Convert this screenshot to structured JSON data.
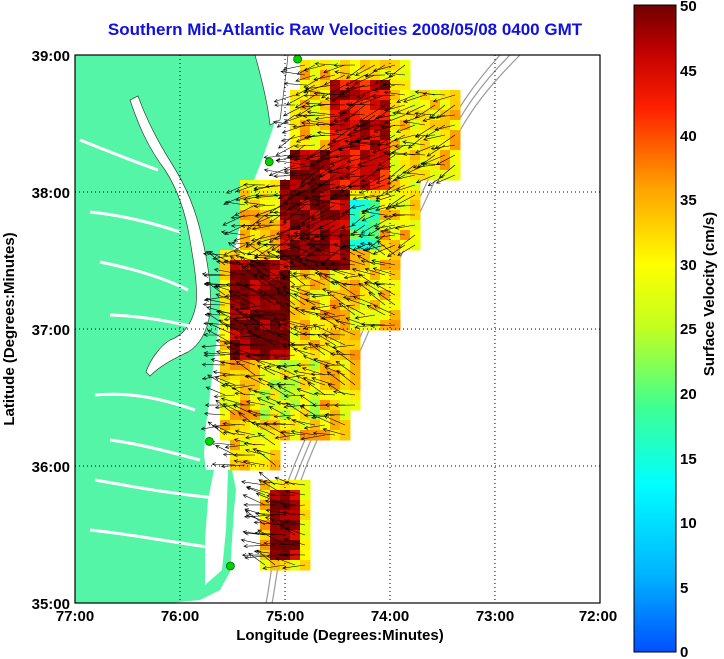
{
  "title": "Southern Mid-Atlantic Raw Velocities 2008/05/08 0400 GMT",
  "axes": {
    "xlabel": "Longitude (Degrees:Minutes)",
    "ylabel": "Latitude (Degrees:Minutes)",
    "x_ticks": [
      "77:00",
      "76:00",
      "75:00",
      "74:00",
      "73:00",
      "72:00"
    ],
    "y_ticks": [
      "39:00",
      "38:00",
      "37:00",
      "36:00",
      "35:00"
    ]
  },
  "colorbar": {
    "label": "Surface Velocity (cm/s)",
    "ticks": [
      "50",
      "45",
      "40",
      "35",
      "30",
      "25",
      "20",
      "15",
      "10",
      "5",
      "0"
    ],
    "min": 0,
    "max": 50
  },
  "colors": {
    "land": "#55f5a8",
    "title": "#1010e0",
    "station": "#00d200",
    "bathymetry": "#9a9a9a"
  },
  "chart_data": {
    "type": "heatmap",
    "title": "Southern Mid-Atlantic Raw Velocities 2008/05/08 0400 GMT",
    "xlabel": "Longitude (Degrees:Minutes)",
    "ylabel": "Latitude (Degrees:Minutes)",
    "xlim": [
      -77,
      -72
    ],
    "ylim": [
      35,
      39
    ],
    "grid": true,
    "colorbar": {
      "label": "Surface Velocity (cm/s)",
      "range": [
        0,
        50
      ]
    },
    "stations": [
      {
        "lon": -74.88,
        "lat": 38.97
      },
      {
        "lon": -75.15,
        "lat": 38.22
      },
      {
        "lon": -75.72,
        "lat": 36.18
      },
      {
        "lon": -75.52,
        "lat": 35.27
      }
    ],
    "velocity_regions": [
      {
        "lon_min": -75.55,
        "lon_max": -74.95,
        "lat_min": 36.8,
        "lat_max": 37.5,
        "speed": 50
      },
      {
        "lon_min": -75.0,
        "lon_max": -74.4,
        "lat_min": 37.4,
        "lat_max": 38.3,
        "speed": 48
      },
      {
        "lon_min": -74.6,
        "lon_max": -74.0,
        "lat_min": 38.0,
        "lat_max": 38.8,
        "speed": 45
      },
      {
        "lon_min": -74.35,
        "lon_max": -74.05,
        "lat_min": 37.6,
        "lat_max": 37.95,
        "speed": 18
      },
      {
        "lon_min": -75.2,
        "lon_max": -74.65,
        "lat_min": 36.3,
        "lat_max": 36.75,
        "speed": 28
      },
      {
        "lon_min": -75.15,
        "lon_max": -74.85,
        "lat_min": 35.3,
        "lat_max": 35.8,
        "speed": 48
      }
    ]
  }
}
